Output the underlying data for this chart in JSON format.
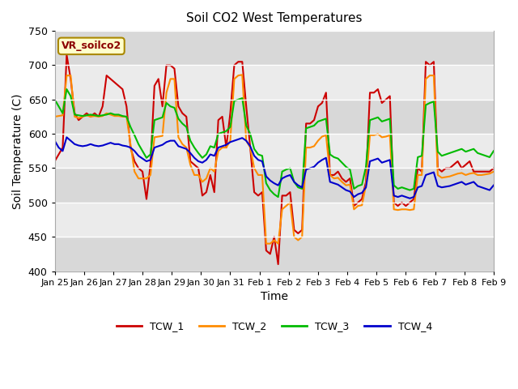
{
  "title": "Soil CO2 West Temperatures",
  "xlabel": "Time",
  "ylabel": "Soil Temperature (C)",
  "ylim": [
    400,
    750
  ],
  "yticks": [
    400,
    450,
    500,
    550,
    600,
    650,
    700,
    750
  ],
  "annotation_text": "VR_soilco2",
  "annotation_color": "#8B0000",
  "annotation_bg": "#FFFFCC",
  "annotation_edge": "#AA8800",
  "fig_bg": "#FFFFFF",
  "plot_bg_light": "#EBEBEB",
  "plot_bg_dark": "#D8D8D8",
  "series_colors": [
    "#CC0000",
    "#FF8C00",
    "#00BB00",
    "#0000CC"
  ],
  "series_labels": [
    "TCW_1",
    "TCW_2",
    "TCW_3",
    "TCW_4"
  ],
  "xtick_labels": [
    "Jan 25",
    "Jan 26",
    "Jan 27",
    "Jan 28",
    "Jan 29",
    "Jan 30",
    "Jan 31",
    "Feb 1",
    "Feb 2",
    "Feb 3",
    "Feb 4",
    "Feb 5",
    "Feb 6",
    "Feb 7",
    "Feb 8",
    "Feb 9"
  ],
  "num_days": 16,
  "TCW_1": [
    560,
    570,
    580,
    715,
    680,
    630,
    620,
    625,
    630,
    625,
    630,
    625,
    640,
    685,
    680,
    675,
    670,
    665,
    640,
    580,
    560,
    550,
    545,
    505,
    555,
    670,
    680,
    640,
    700,
    700,
    695,
    640,
    630,
    625,
    560,
    555,
    550,
    510,
    515,
    540,
    515,
    620,
    625,
    580,
    630,
    700,
    705,
    705,
    640,
    580,
    515,
    510,
    515,
    430,
    425,
    450,
    410,
    510,
    510,
    515,
    460,
    455,
    460,
    615,
    615,
    620,
    640,
    645,
    660,
    540,
    540,
    545,
    535,
    530,
    535,
    495,
    500,
    505,
    530,
    660,
    660,
    665,
    645,
    650,
    655,
    500,
    495,
    500,
    495,
    500,
    505,
    550,
    545,
    705,
    700,
    705,
    550,
    545,
    550,
    550,
    555,
    560,
    550,
    555,
    560,
    545,
    545,
    545,
    545,
    545,
    550
  ],
  "TCW_2": [
    625,
    626,
    627,
    685,
    685,
    625,
    623,
    625,
    627,
    625,
    626,
    625,
    626,
    630,
    628,
    626,
    626,
    625,
    625,
    585,
    545,
    535,
    535,
    535,
    540,
    595,
    596,
    597,
    660,
    680,
    680,
    595,
    585,
    580,
    555,
    540,
    540,
    530,
    535,
    550,
    545,
    575,
    580,
    580,
    590,
    680,
    685,
    686,
    590,
    580,
    550,
    540,
    540,
    440,
    440,
    445,
    440,
    490,
    495,
    500,
    450,
    445,
    450,
    580,
    580,
    582,
    590,
    596,
    598,
    540,
    535,
    536,
    530,
    525,
    526,
    490,
    495,
    496,
    525,
    598,
    598,
    600,
    595,
    596,
    598,
    490,
    489,
    490,
    490,
    489,
    490,
    540,
    540,
    680,
    685,
    685,
    540,
    536,
    537,
    538,
    540,
    542,
    543,
    540,
    542,
    543,
    540,
    540,
    541,
    542,
    545
  ],
  "TCW_3": [
    650,
    640,
    630,
    665,
    655,
    628,
    627,
    626,
    627,
    628,
    627,
    626,
    627,
    628,
    630,
    628,
    628,
    626,
    625,
    610,
    598,
    585,
    575,
    565,
    570,
    620,
    622,
    624,
    645,
    640,
    638,
    622,
    615,
    610,
    590,
    580,
    572,
    565,
    570,
    582,
    580,
    600,
    602,
    604,
    610,
    648,
    650,
    652,
    612,
    600,
    578,
    570,
    568,
    528,
    518,
    512,
    508,
    545,
    548,
    550,
    530,
    522,
    520,
    608,
    610,
    612,
    618,
    620,
    622,
    570,
    566,
    564,
    558,
    552,
    548,
    520,
    524,
    526,
    552,
    620,
    622,
    624,
    618,
    620,
    622,
    525,
    520,
    522,
    520,
    518,
    520,
    566,
    568,
    642,
    645,
    647,
    574,
    568,
    570,
    572,
    574,
    576,
    578,
    574,
    576,
    578,
    572,
    570,
    568,
    566,
    575
  ],
  "TCW_4": [
    590,
    580,
    575,
    595,
    590,
    585,
    583,
    582,
    583,
    585,
    583,
    582,
    583,
    585,
    587,
    585,
    585,
    583,
    582,
    580,
    575,
    568,
    564,
    560,
    562,
    580,
    582,
    584,
    588,
    590,
    590,
    582,
    580,
    578,
    572,
    565,
    560,
    558,
    562,
    570,
    568,
    580,
    582,
    584,
    588,
    590,
    592,
    594,
    590,
    582,
    568,
    562,
    560,
    538,
    532,
    528,
    525,
    535,
    538,
    540,
    530,
    525,
    522,
    548,
    550,
    552,
    558,
    562,
    565,
    530,
    528,
    526,
    522,
    518,
    516,
    508,
    512,
    514,
    522,
    560,
    562,
    564,
    558,
    560,
    562,
    510,
    508,
    510,
    508,
    506,
    508,
    522,
    524,
    540,
    542,
    544,
    524,
    522,
    523,
    524,
    526,
    528,
    530,
    526,
    528,
    530,
    524,
    522,
    520,
    518,
    525
  ]
}
